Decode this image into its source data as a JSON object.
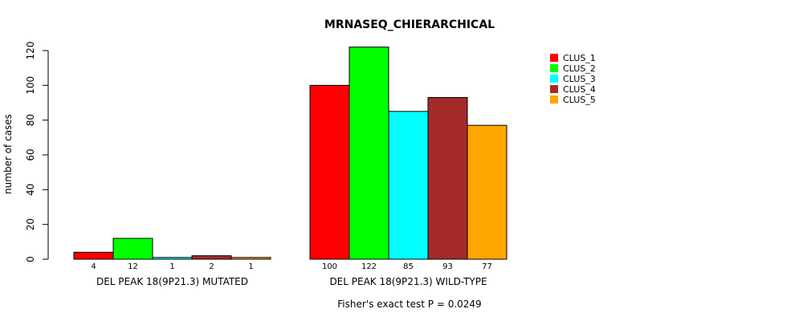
{
  "chart_data": {
    "type": "bar",
    "title": "MRNASEQ_CHIERARCHICAL",
    "ylabel": "number of cases",
    "ylim": [
      0,
      120
    ],
    "yticks": [
      0,
      20,
      40,
      60,
      80,
      100,
      120
    ],
    "footnote": "Fisher's exact test P = 0.0249",
    "legend_position": "top-right",
    "series": [
      {
        "name": "CLUS_1",
        "color": "#ff0000"
      },
      {
        "name": "CLUS_2",
        "color": "#00ff00"
      },
      {
        "name": "CLUS_3",
        "color": "#00ffff"
      },
      {
        "name": "CLUS_4",
        "color": "#a52a2a"
      },
      {
        "name": "CLUS_5",
        "color": "#ffa500"
      }
    ],
    "groups": [
      {
        "label": "DEL PEAK 18(9P21.3) MUTATED",
        "values": [
          4,
          12,
          1,
          2,
          1
        ]
      },
      {
        "label": "DEL PEAK 18(9P21.3) WILD-TYPE",
        "values": [
          100,
          122,
          85,
          93,
          77
        ]
      }
    ]
  }
}
